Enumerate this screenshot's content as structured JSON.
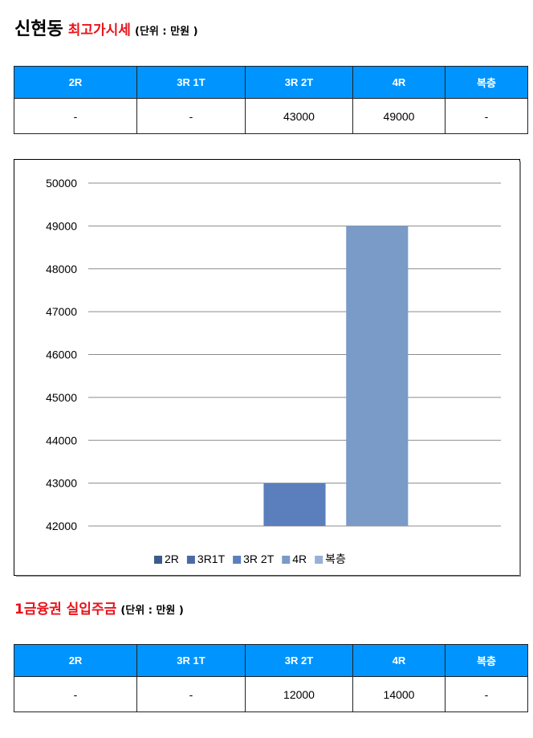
{
  "section1": {
    "place": "신현동",
    "subject": "최고가시세",
    "unit": "(단위 : 만원 )"
  },
  "table1": {
    "headers": [
      "2R",
      "3R 1T",
      "3R 2T",
      "4R",
      "복층"
    ],
    "values": [
      "-",
      "-",
      "43000",
      "49000",
      "-"
    ]
  },
  "chart_data": {
    "type": "bar",
    "categories": [
      "2R",
      "3R1T",
      "3R 2T",
      "4R",
      "복층"
    ],
    "values": [
      null,
      null,
      43000,
      49000,
      null
    ],
    "ylim": [
      42000,
      50000
    ],
    "yticks": [
      "50000",
      "49000",
      "48000",
      "47000",
      "46000",
      "45000",
      "44000",
      "43000",
      "42000"
    ],
    "grid": true,
    "legend_position": "bottom",
    "colors": [
      "#3d5a8a",
      "#4a6aa3",
      "#5b7fbd",
      "#7a9ac7",
      "#98b0d6"
    ]
  },
  "section2": {
    "subject": "1금융권 실입주금",
    "unit": "(단위 : 만원 )"
  },
  "table2": {
    "headers": [
      "2R",
      "3R 1T",
      "3R 2T",
      "4R",
      "복층"
    ],
    "values": [
      "-",
      "-",
      "12000",
      "14000",
      "-"
    ]
  }
}
